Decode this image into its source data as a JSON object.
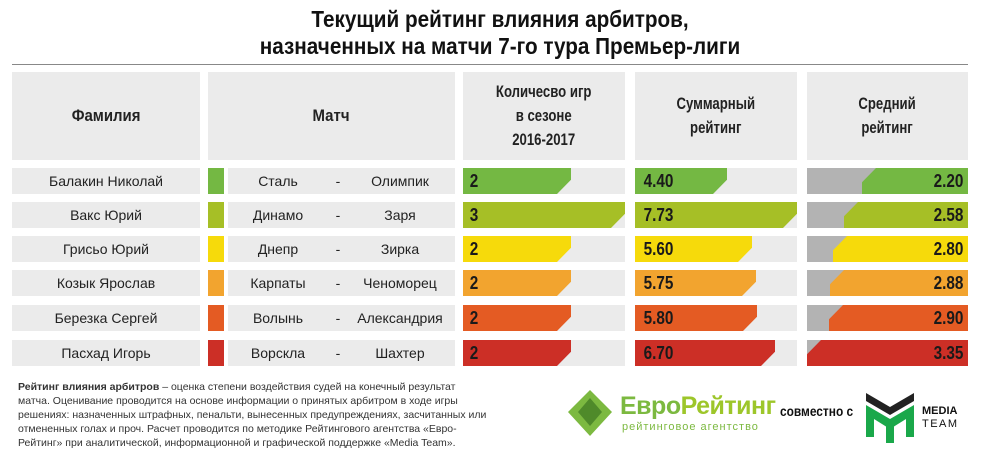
{
  "title": [
    "Текущий рейтинг влияния арбитров,",
    "назначенных на матчи 7-го тура Премьер-лиги"
  ],
  "headers": {
    "name": "Фамилия",
    "match": "Матч",
    "games": [
      "Количесво игр",
      "в сезоне",
      "2016-2017"
    ],
    "sum": [
      "Суммарный",
      "рейтинг"
    ],
    "avg": [
      "Средний",
      "рейтинг"
    ]
  },
  "chart_data": {
    "type": "table",
    "columns": [
      "Фамилия",
      "Матч",
      "Количесво игр в сезоне 2016-2017",
      "Суммарный рейтинг",
      "Средний рейтинг"
    ],
    "rows": [
      {
        "name": "Балакин Николай",
        "home": "Сталь",
        "sep": "-",
        "away": "Олимпик",
        "games": "2",
        "sum": "4.40",
        "avg": "2.20",
        "color": "#74b843"
      },
      {
        "name": "Вакс Юрий",
        "home": "Динамо",
        "sep": "-",
        "away": "Заря",
        "games": "3",
        "sum": "7.73",
        "avg": "2.58",
        "color": "#a6bf26"
      },
      {
        "name": "Грисьо Юрий",
        "home": "Днепр",
        "sep": "-",
        "away": "Зирка",
        "games": "2",
        "sum": "5.60",
        "avg": "2.80",
        "color": "#f6da0b"
      },
      {
        "name": "Козык Ярослав",
        "home": "Карпаты",
        "sep": "-",
        "away": "Ченоморец",
        "games": "2",
        "sum": "5.75",
        "avg": "2.88",
        "color": "#f2a42f"
      },
      {
        "name": "Березка Сергей",
        "home": "Волынь",
        "sep": "-",
        "away": "Александрия",
        "games": "2",
        "sum": "5.80",
        "avg": "2.90",
        "color": "#e45b23"
      },
      {
        "name": "Пасхад Игорь",
        "home": "Ворскла",
        "sep": "-",
        "away": "Шахтер",
        "games": "2",
        "sum": "6.70",
        "avg": "3.35",
        "color": "#cc2f26"
      }
    ],
    "max": {
      "games": 3,
      "sum": 7.73,
      "avg": 3.35
    }
  },
  "note": {
    "bold": "Рейтинг влияния арбитров",
    "text": " – оценка степени воздействия судей на конечный результат матча. Оценивание проводится на основе информации о принятых арбитром в ходе игры решениях: назначенных штрафных, пенальти, вынесенных предупреждениях, засчитанных или отмененных голах и проч. Расчет проводится по методике Рейтингового агентства «Евро-Рейтинг» при аналитической, информационной и графической поддержке «Media Team»."
  },
  "logos": {
    "euro1": "Евро",
    "euro2": "Рейтинг",
    "euro_sub": "рейтинговое агентство",
    "joint": "совместно с",
    "media1": "MEDIA",
    "media2": "TEAM"
  }
}
